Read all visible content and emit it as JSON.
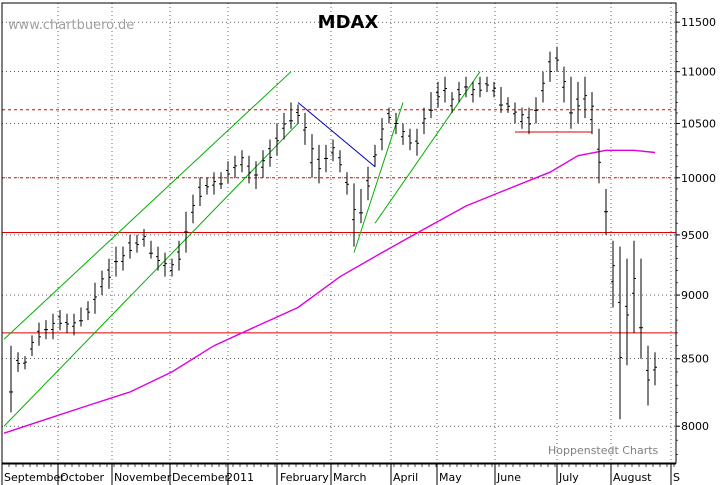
{
  "watermark": "www.chartbuero.de",
  "credit": "Hoppenstedt Charts",
  "chart_data": {
    "type": "ohlc",
    "title": "MDAX",
    "y_axis": {
      "position": "right",
      "ticks": [
        "11500",
        "11000",
        "10500",
        "10000",
        "9500",
        "9000",
        "8500",
        "8000"
      ],
      "tick_values": [
        11500,
        11000,
        10500,
        10000,
        9500,
        9000,
        8500,
        8000
      ],
      "scale": "log"
    },
    "x_axis": {
      "labels": [
        "September",
        "October",
        "November",
        "December",
        "2011",
        "February",
        "March",
        "April",
        "May",
        "June",
        "July",
        "August",
        "S"
      ]
    },
    "price_bars": [
      [
        1,
        8100,
        8600
      ],
      [
        2,
        8400,
        8550
      ],
      [
        3,
        8420,
        8520
      ],
      [
        4,
        8520,
        8680
      ],
      [
        5,
        8600,
        8780
      ],
      [
        6,
        8650,
        8800
      ],
      [
        7,
        8650,
        8850
      ],
      [
        8,
        8720,
        8880
      ],
      [
        9,
        8700,
        8850
      ],
      [
        10,
        8680,
        8850
      ],
      [
        11,
        8750,
        8900
      ],
      [
        12,
        8800,
        8950
      ],
      [
        13,
        8850,
        9100
      ],
      [
        14,
        9000,
        9200
      ],
      [
        15,
        9050,
        9300
      ],
      [
        16,
        9150,
        9400
      ],
      [
        17,
        9200,
        9400
      ],
      [
        18,
        9300,
        9500
      ],
      [
        19,
        9350,
        9500
      ],
      [
        20,
        9400,
        9550
      ],
      [
        21,
        9300,
        9450
      ],
      [
        22,
        9200,
        9400
      ],
      [
        23,
        9150,
        9350
      ],
      [
        24,
        9150,
        9300
      ],
      [
        25,
        9200,
        9450
      ],
      [
        26,
        9350,
        9700
      ],
      [
        27,
        9600,
        9850
      ],
      [
        28,
        9750,
        10000
      ],
      [
        29,
        9850,
        10000
      ],
      [
        30,
        9850,
        10050
      ],
      [
        31,
        9900,
        10050
      ],
      [
        32,
        9950,
        10150
      ],
      [
        33,
        10000,
        10200
      ],
      [
        34,
        10050,
        10250
      ],
      [
        35,
        9950,
        10200
      ],
      [
        36,
        9900,
        10150
      ],
      [
        37,
        10000,
        10250
      ],
      [
        38,
        10100,
        10350
      ],
      [
        39,
        10200,
        10500
      ],
      [
        40,
        10350,
        10600
      ],
      [
        41,
        10450,
        10700
      ],
      [
        42,
        10500,
        10680
      ],
      [
        43,
        10300,
        10600
      ],
      [
        44,
        10000,
        10400
      ],
      [
        45,
        9950,
        10300
      ],
      [
        46,
        10050,
        10300
      ],
      [
        47,
        10150,
        10350
      ],
      [
        48,
        10050,
        10250
      ],
      [
        49,
        9850,
        10050
      ],
      [
        50,
        9400,
        9950
      ],
      [
        51,
        9600,
        9900
      ],
      [
        52,
        9800,
        10100
      ],
      [
        53,
        10100,
        10300
      ],
      [
        54,
        10250,
        10550
      ],
      [
        55,
        10500,
        10650
      ],
      [
        56,
        10400,
        10600
      ],
      [
        57,
        10300,
        10500
      ],
      [
        58,
        10250,
        10450
      ],
      [
        59,
        10200,
        10450
      ],
      [
        60,
        10400,
        10650
      ],
      [
        61,
        10550,
        10800
      ],
      [
        62,
        10650,
        10900
      ],
      [
        63,
        10700,
        10950
      ],
      [
        64,
        10600,
        10800
      ],
      [
        65,
        10700,
        10900
      ],
      [
        66,
        10750,
        10950
      ],
      [
        67,
        10700,
        10900
      ],
      [
        68,
        10750,
        10950
      ],
      [
        69,
        10800,
        10950
      ],
      [
        70,
        10750,
        10900
      ],
      [
        71,
        10600,
        10850
      ],
      [
        72,
        10600,
        10750
      ],
      [
        73,
        10500,
        10700
      ],
      [
        74,
        10450,
        10650
      ],
      [
        75,
        10400,
        10650
      ],
      [
        76,
        10500,
        10750
      ],
      [
        77,
        10700,
        11000
      ],
      [
        78,
        10900,
        11200
      ],
      [
        79,
        11000,
        11250
      ],
      [
        80,
        10700,
        11050
      ],
      [
        81,
        10450,
        10950
      ],
      [
        82,
        10500,
        10900
      ],
      [
        83,
        10550,
        10950
      ],
      [
        84,
        10400,
        10800
      ],
      [
        85,
        9950,
        10450
      ],
      [
        86,
        9500,
        9900
      ],
      [
        87,
        8900,
        9450
      ],
      [
        88,
        8050,
        9400
      ],
      [
        89,
        8450,
        9300
      ],
      [
        90,
        8700,
        9450
      ],
      [
        91,
        8500,
        9300
      ],
      [
        92,
        8150,
        8600
      ],
      [
        93,
        8300,
        8550
      ]
    ],
    "moving_average": [
      [
        0,
        7950
      ],
      [
        6,
        8050
      ],
      [
        12,
        8150
      ],
      [
        18,
        8250
      ],
      [
        24,
        8400
      ],
      [
        30,
        8600
      ],
      [
        36,
        8750
      ],
      [
        42,
        8900
      ],
      [
        48,
        9150
      ],
      [
        54,
        9350
      ],
      [
        60,
        9550
      ],
      [
        66,
        9750
      ],
      [
        72,
        9900
      ],
      [
        78,
        10050
      ],
      [
        82,
        10200
      ],
      [
        86,
        10250
      ],
      [
        90,
        10250
      ],
      [
        93,
        10230
      ]
    ],
    "horizontal_lines": [
      {
        "value": 10630,
        "style": "dashed",
        "color": "#e00000"
      },
      {
        "value": 10000,
        "style": "dashed",
        "color": "#e00000"
      },
      {
        "value": 9520,
        "style": "solid",
        "color": "#e00000"
      },
      {
        "value": 8700,
        "style": "solid",
        "color": "#e00000"
      },
      {
        "value": 10420,
        "style": "solid",
        "color": "#e00000",
        "from": 73,
        "to": 84
      }
    ],
    "trend_lines": [
      {
        "from": [
          0,
          8650
        ],
        "to": [
          41,
          11000
        ],
        "color": "#00b000"
      },
      {
        "from": [
          0,
          8000
        ],
        "to": [
          42,
          10500
        ],
        "color": "#00b000"
      },
      {
        "from": [
          42,
          10700
        ],
        "to": [
          53,
          10100
        ],
        "color": "#0000c0"
      },
      {
        "from": [
          50,
          9350
        ],
        "to": [
          57,
          10700
        ],
        "color": "#00b000"
      },
      {
        "from": [
          53,
          9600
        ],
        "to": [
          68,
          11000
        ],
        "color": "#00b000"
      }
    ],
    "colors": {
      "bars": "#000000",
      "moving_average": "#e000e0",
      "grid": "#000000"
    },
    "grid": "dotted",
    "legend": "none"
  }
}
